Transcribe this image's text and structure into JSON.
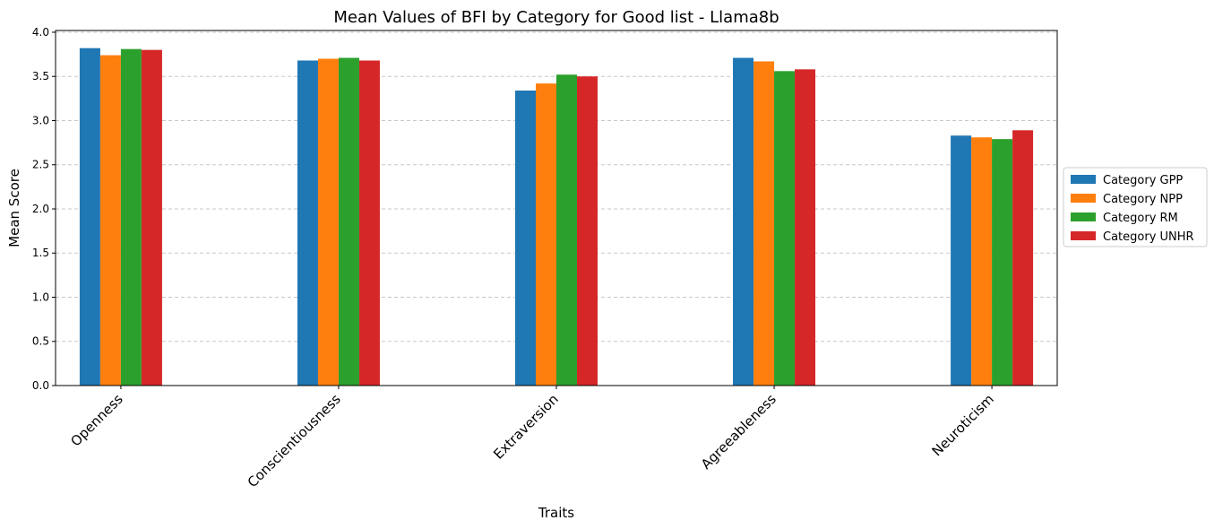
{
  "chart_data": {
    "type": "bar",
    "title": "Mean Values of BFI by Category for Good list - Llama8b",
    "xlabel": "Traits",
    "ylabel": "Mean Score",
    "categories": [
      "Openness",
      "Conscientiousness",
      "Extraversion",
      "Agreeableness",
      "Neuroticism"
    ],
    "series": [
      {
        "name": "Category GPP",
        "color": "#1f77b4",
        "values": [
          3.82,
          3.68,
          3.34,
          3.71,
          2.83
        ]
      },
      {
        "name": "Category NPP",
        "color": "#ff7f0e",
        "values": [
          3.74,
          3.7,
          3.42,
          3.67,
          2.81
        ]
      },
      {
        "name": "Category RM",
        "color": "#2ca02c",
        "values": [
          3.81,
          3.71,
          3.52,
          3.56,
          2.79
        ]
      },
      {
        "name": "Category UNHR",
        "color": "#d62728",
        "values": [
          3.8,
          3.68,
          3.5,
          3.58,
          2.89
        ]
      }
    ],
    "ylim": [
      0,
      4.02
    ],
    "yticks": [
      "0.0",
      "0.5",
      "1.0",
      "1.5",
      "2.0",
      "2.5",
      "3.0",
      "3.5",
      "4.0"
    ],
    "grid": "y-dashed",
    "legend_position": "center-right outside"
  }
}
